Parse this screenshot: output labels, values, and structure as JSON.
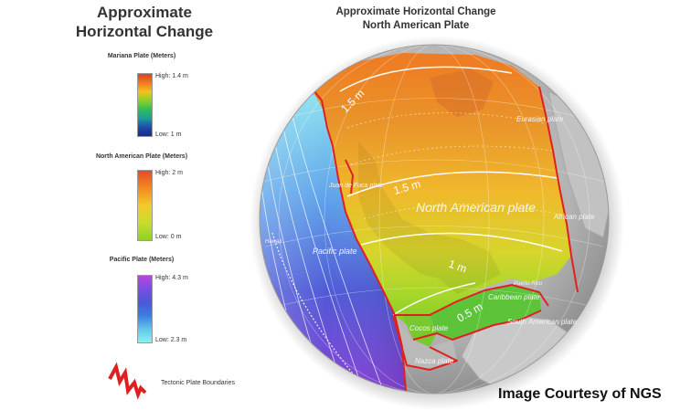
{
  "legend": {
    "title": "Approximate Horizontal Change",
    "mariana": {
      "name": "Mariana Plate (Meters)",
      "high": "High: 1.4 m",
      "low": "Low: 1 m"
    },
    "north_american": {
      "name": "North American Plate (Meters)",
      "high": "High: 2 m",
      "low": "Low: 0 m"
    },
    "pacific": {
      "name": "Pacific Plate (Meters)",
      "high": "High: 4.3 m",
      "low": "Low: 2.3 m"
    },
    "boundaries": "Tectonic Plate Boundaries"
  },
  "map": {
    "title_line1": "Approximate Horizontal Change",
    "title_line2": "North American Plate",
    "contours": [
      "1.5 m",
      "1.5 m",
      "1 m",
      "0.5 m"
    ],
    "plates": {
      "north_american": "North American plate",
      "pacific": "Pacific plate",
      "eurasian": "Eurasian plate",
      "african": "African plate",
      "cocos": "Cocos plate",
      "nazca": "Nazca plate",
      "caribbean": "Caribbean plate",
      "south_american": "South American plate",
      "juan_de_fuca": "Juan de Fuca plate"
    },
    "places": {
      "puerto_rico": "Puerto Rico",
      "hawaii": "Hawaii"
    }
  },
  "credit": "Image Courtesy of NGS",
  "colors": {
    "boundary": "#e02020",
    "globe_gray": "#b9b9b9"
  }
}
